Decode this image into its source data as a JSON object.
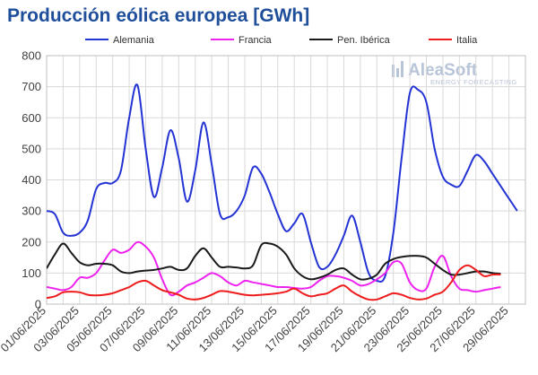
{
  "chart_data": {
    "type": "line",
    "title": "Producción eólica europea [GWh]",
    "xlabel": "",
    "ylabel": "",
    "ylim": [
      0,
      800
    ],
    "yticks": [
      0,
      100,
      200,
      300,
      400,
      500,
      600,
      700,
      800
    ],
    "xlim": [
      1,
      30
    ],
    "grid": true,
    "legend_position": "top",
    "xtick_labels": [
      "01/06/2025",
      "03/06/2025",
      "05/06/2025",
      "07/06/2025",
      "09/06/2025",
      "11/06/2025",
      "13/06/2025",
      "15/06/2025",
      "17/06/2025",
      "19/06/2025",
      "21/06/2025",
      "23/06/2025",
      "25/06/2025",
      "27/06/2025",
      "29/06/2025"
    ],
    "xtick_days": [
      1,
      3,
      5,
      7,
      9,
      11,
      13,
      15,
      17,
      19,
      21,
      23,
      25,
      27,
      29
    ],
    "series": [
      {
        "name": "Alemania",
        "color": "#2433d4",
        "points": [
          [
            1,
            300
          ],
          [
            1.5,
            290
          ],
          [
            2,
            230
          ],
          [
            2.5,
            220
          ],
          [
            3,
            230
          ],
          [
            3.5,
            270
          ],
          [
            4,
            370
          ],
          [
            4.5,
            390
          ],
          [
            5,
            390
          ],
          [
            5.5,
            430
          ],
          [
            6,
            600
          ],
          [
            6.5,
            705
          ],
          [
            7,
            500
          ],
          [
            7.5,
            345
          ],
          [
            8,
            440
          ],
          [
            8.5,
            560
          ],
          [
            9,
            470
          ],
          [
            9.5,
            330
          ],
          [
            10,
            430
          ],
          [
            10.5,
            585
          ],
          [
            11,
            450
          ],
          [
            11.5,
            290
          ],
          [
            12,
            280
          ],
          [
            12.5,
            300
          ],
          [
            13,
            350
          ],
          [
            13.5,
            440
          ],
          [
            14,
            420
          ],
          [
            14.5,
            360
          ],
          [
            15,
            290
          ],
          [
            15.5,
            235
          ],
          [
            16,
            260
          ],
          [
            16.5,
            290
          ],
          [
            17,
            200
          ],
          [
            17.5,
            120
          ],
          [
            18,
            120
          ],
          [
            18.5,
            160
          ],
          [
            19,
            220
          ],
          [
            19.5,
            285
          ],
          [
            20,
            200
          ],
          [
            20.5,
            100
          ],
          [
            21,
            75
          ],
          [
            21.5,
            90
          ],
          [
            22,
            230
          ],
          [
            22.5,
            470
          ],
          [
            23,
            680
          ],
          [
            23.5,
            690
          ],
          [
            24,
            650
          ],
          [
            24.5,
            500
          ],
          [
            25,
            410
          ],
          [
            25.5,
            385
          ],
          [
            26,
            380
          ],
          [
            26.5,
            430
          ],
          [
            27,
            480
          ],
          [
            27.5,
            460
          ],
          [
            28,
            420
          ],
          [
            28.5,
            380
          ],
          [
            29,
            340
          ],
          [
            29.5,
            300
          ]
        ]
      },
      {
        "name": "Francia",
        "color": "#ee22ee",
        "points": [
          [
            1,
            55
          ],
          [
            1.5,
            50
          ],
          [
            2,
            45
          ],
          [
            2.5,
            55
          ],
          [
            3,
            85
          ],
          [
            3.5,
            85
          ],
          [
            4,
            100
          ],
          [
            4.5,
            140
          ],
          [
            5,
            175
          ],
          [
            5.5,
            165
          ],
          [
            6,
            175
          ],
          [
            6.5,
            200
          ],
          [
            7,
            185
          ],
          [
            7.5,
            150
          ],
          [
            8,
            80
          ],
          [
            8.5,
            30
          ],
          [
            9,
            40
          ],
          [
            9.5,
            60
          ],
          [
            10,
            70
          ],
          [
            10.5,
            85
          ],
          [
            11,
            100
          ],
          [
            11.5,
            90
          ],
          [
            12,
            70
          ],
          [
            12.5,
            60
          ],
          [
            13,
            75
          ],
          [
            13.5,
            70
          ],
          [
            14,
            65
          ],
          [
            14.5,
            60
          ],
          [
            15,
            55
          ],
          [
            15.5,
            55
          ],
          [
            16,
            52
          ],
          [
            16.5,
            50
          ],
          [
            17,
            55
          ],
          [
            17.5,
            75
          ],
          [
            18,
            90
          ],
          [
            18.5,
            90
          ],
          [
            19,
            85
          ],
          [
            19.5,
            75
          ],
          [
            20,
            60
          ],
          [
            20.5,
            65
          ],
          [
            21,
            80
          ],
          [
            21.5,
            100
          ],
          [
            22,
            135
          ],
          [
            22.5,
            130
          ],
          [
            23,
            70
          ],
          [
            23.5,
            45
          ],
          [
            24,
            50
          ],
          [
            24.5,
            120
          ],
          [
            25,
            155
          ],
          [
            25.5,
            90
          ],
          [
            26,
            50
          ],
          [
            26.5,
            45
          ],
          [
            27,
            40
          ],
          [
            27.5,
            45
          ],
          [
            28,
            50
          ],
          [
            28.5,
            55
          ]
        ]
      },
      {
        "name": "Pen. Ibérica",
        "color": "#1a1a1a",
        "points": [
          [
            1,
            115
          ],
          [
            1.5,
            160
          ],
          [
            2,
            195
          ],
          [
            2.5,
            165
          ],
          [
            3,
            135
          ],
          [
            3.5,
            125
          ],
          [
            4,
            130
          ],
          [
            4.5,
            130
          ],
          [
            5,
            125
          ],
          [
            5.5,
            105
          ],
          [
            6,
            100
          ],
          [
            6.5,
            105
          ],
          [
            7,
            108
          ],
          [
            7.5,
            110
          ],
          [
            8,
            115
          ],
          [
            8.5,
            120
          ],
          [
            9,
            110
          ],
          [
            9.5,
            115
          ],
          [
            10,
            155
          ],
          [
            10.5,
            180
          ],
          [
            11,
            150
          ],
          [
            11.5,
            120
          ],
          [
            12,
            120
          ],
          [
            12.5,
            118
          ],
          [
            13,
            115
          ],
          [
            13.5,
            125
          ],
          [
            14,
            190
          ],
          [
            14.5,
            195
          ],
          [
            15,
            185
          ],
          [
            15.5,
            160
          ],
          [
            16,
            115
          ],
          [
            16.5,
            90
          ],
          [
            17,
            80
          ],
          [
            17.5,
            85
          ],
          [
            18,
            95
          ],
          [
            18.5,
            110
          ],
          [
            19,
            115
          ],
          [
            19.5,
            95
          ],
          [
            20,
            80
          ],
          [
            20.5,
            82
          ],
          [
            21,
            95
          ],
          [
            21.5,
            130
          ],
          [
            22,
            145
          ],
          [
            22.5,
            152
          ],
          [
            23,
            155
          ],
          [
            23.5,
            155
          ],
          [
            24,
            150
          ],
          [
            24.5,
            130
          ],
          [
            25,
            110
          ],
          [
            25.5,
            95
          ],
          [
            26,
            95
          ],
          [
            26.5,
            100
          ],
          [
            27,
            105
          ],
          [
            27.5,
            105
          ],
          [
            28,
            100
          ],
          [
            28.5,
            98
          ]
        ]
      },
      {
        "name": "Italia",
        "color": "#ee1c1c",
        "points": [
          [
            1,
            20
          ],
          [
            1.5,
            25
          ],
          [
            2,
            38
          ],
          [
            2.5,
            40
          ],
          [
            3,
            38
          ],
          [
            3.5,
            30
          ],
          [
            4,
            28
          ],
          [
            4.5,
            30
          ],
          [
            5,
            35
          ],
          [
            5.5,
            45
          ],
          [
            6,
            55
          ],
          [
            6.5,
            70
          ],
          [
            7,
            75
          ],
          [
            7.5,
            60
          ],
          [
            8,
            45
          ],
          [
            8.5,
            38
          ],
          [
            9,
            30
          ],
          [
            9.5,
            18
          ],
          [
            10,
            15
          ],
          [
            10.5,
            20
          ],
          [
            11,
            30
          ],
          [
            11.5,
            42
          ],
          [
            12,
            40
          ],
          [
            12.5,
            35
          ],
          [
            13,
            30
          ],
          [
            13.5,
            28
          ],
          [
            14,
            30
          ],
          [
            14.5,
            32
          ],
          [
            15,
            35
          ],
          [
            15.5,
            40
          ],
          [
            16,
            50
          ],
          [
            16.5,
            35
          ],
          [
            17,
            25
          ],
          [
            17.5,
            30
          ],
          [
            18,
            35
          ],
          [
            18.5,
            50
          ],
          [
            19,
            60
          ],
          [
            19.5,
            40
          ],
          [
            20,
            25
          ],
          [
            20.5,
            15
          ],
          [
            21,
            15
          ],
          [
            21.5,
            25
          ],
          [
            22,
            35
          ],
          [
            22.5,
            30
          ],
          [
            23,
            20
          ],
          [
            23.5,
            15
          ],
          [
            24,
            18
          ],
          [
            24.5,
            30
          ],
          [
            25,
            40
          ],
          [
            25.5,
            70
          ],
          [
            26,
            110
          ],
          [
            26.5,
            125
          ],
          [
            27,
            110
          ],
          [
            27.5,
            90
          ],
          [
            28,
            95
          ],
          [
            28.5,
            95
          ]
        ]
      }
    ]
  },
  "logo": {
    "main": "AleaSoft",
    "sub": "ENERGY FORECASTING"
  }
}
